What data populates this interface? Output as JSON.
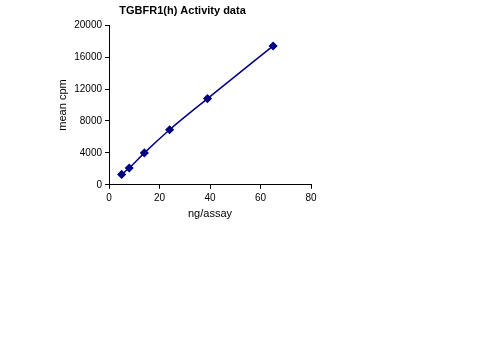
{
  "chart_data": {
    "type": "line",
    "title": "TGBFR1(h) Activity data",
    "xlabel": "ng/assay",
    "ylabel": "mean cpm",
    "x": [
      5,
      8,
      14,
      24,
      39,
      65
    ],
    "values": [
      1300,
      2100,
      4000,
      6900,
      10800,
      17400
    ],
    "color": "#000080",
    "marker": "diamond",
    "line_style": "smooth",
    "xlim": [
      0,
      80
    ],
    "xticks": [
      0,
      20,
      40,
      60,
      80
    ],
    "ylim": [
      0,
      20000
    ],
    "yticks": [
      0,
      4000,
      8000,
      12000,
      16000,
      20000
    ],
    "grid": false
  }
}
